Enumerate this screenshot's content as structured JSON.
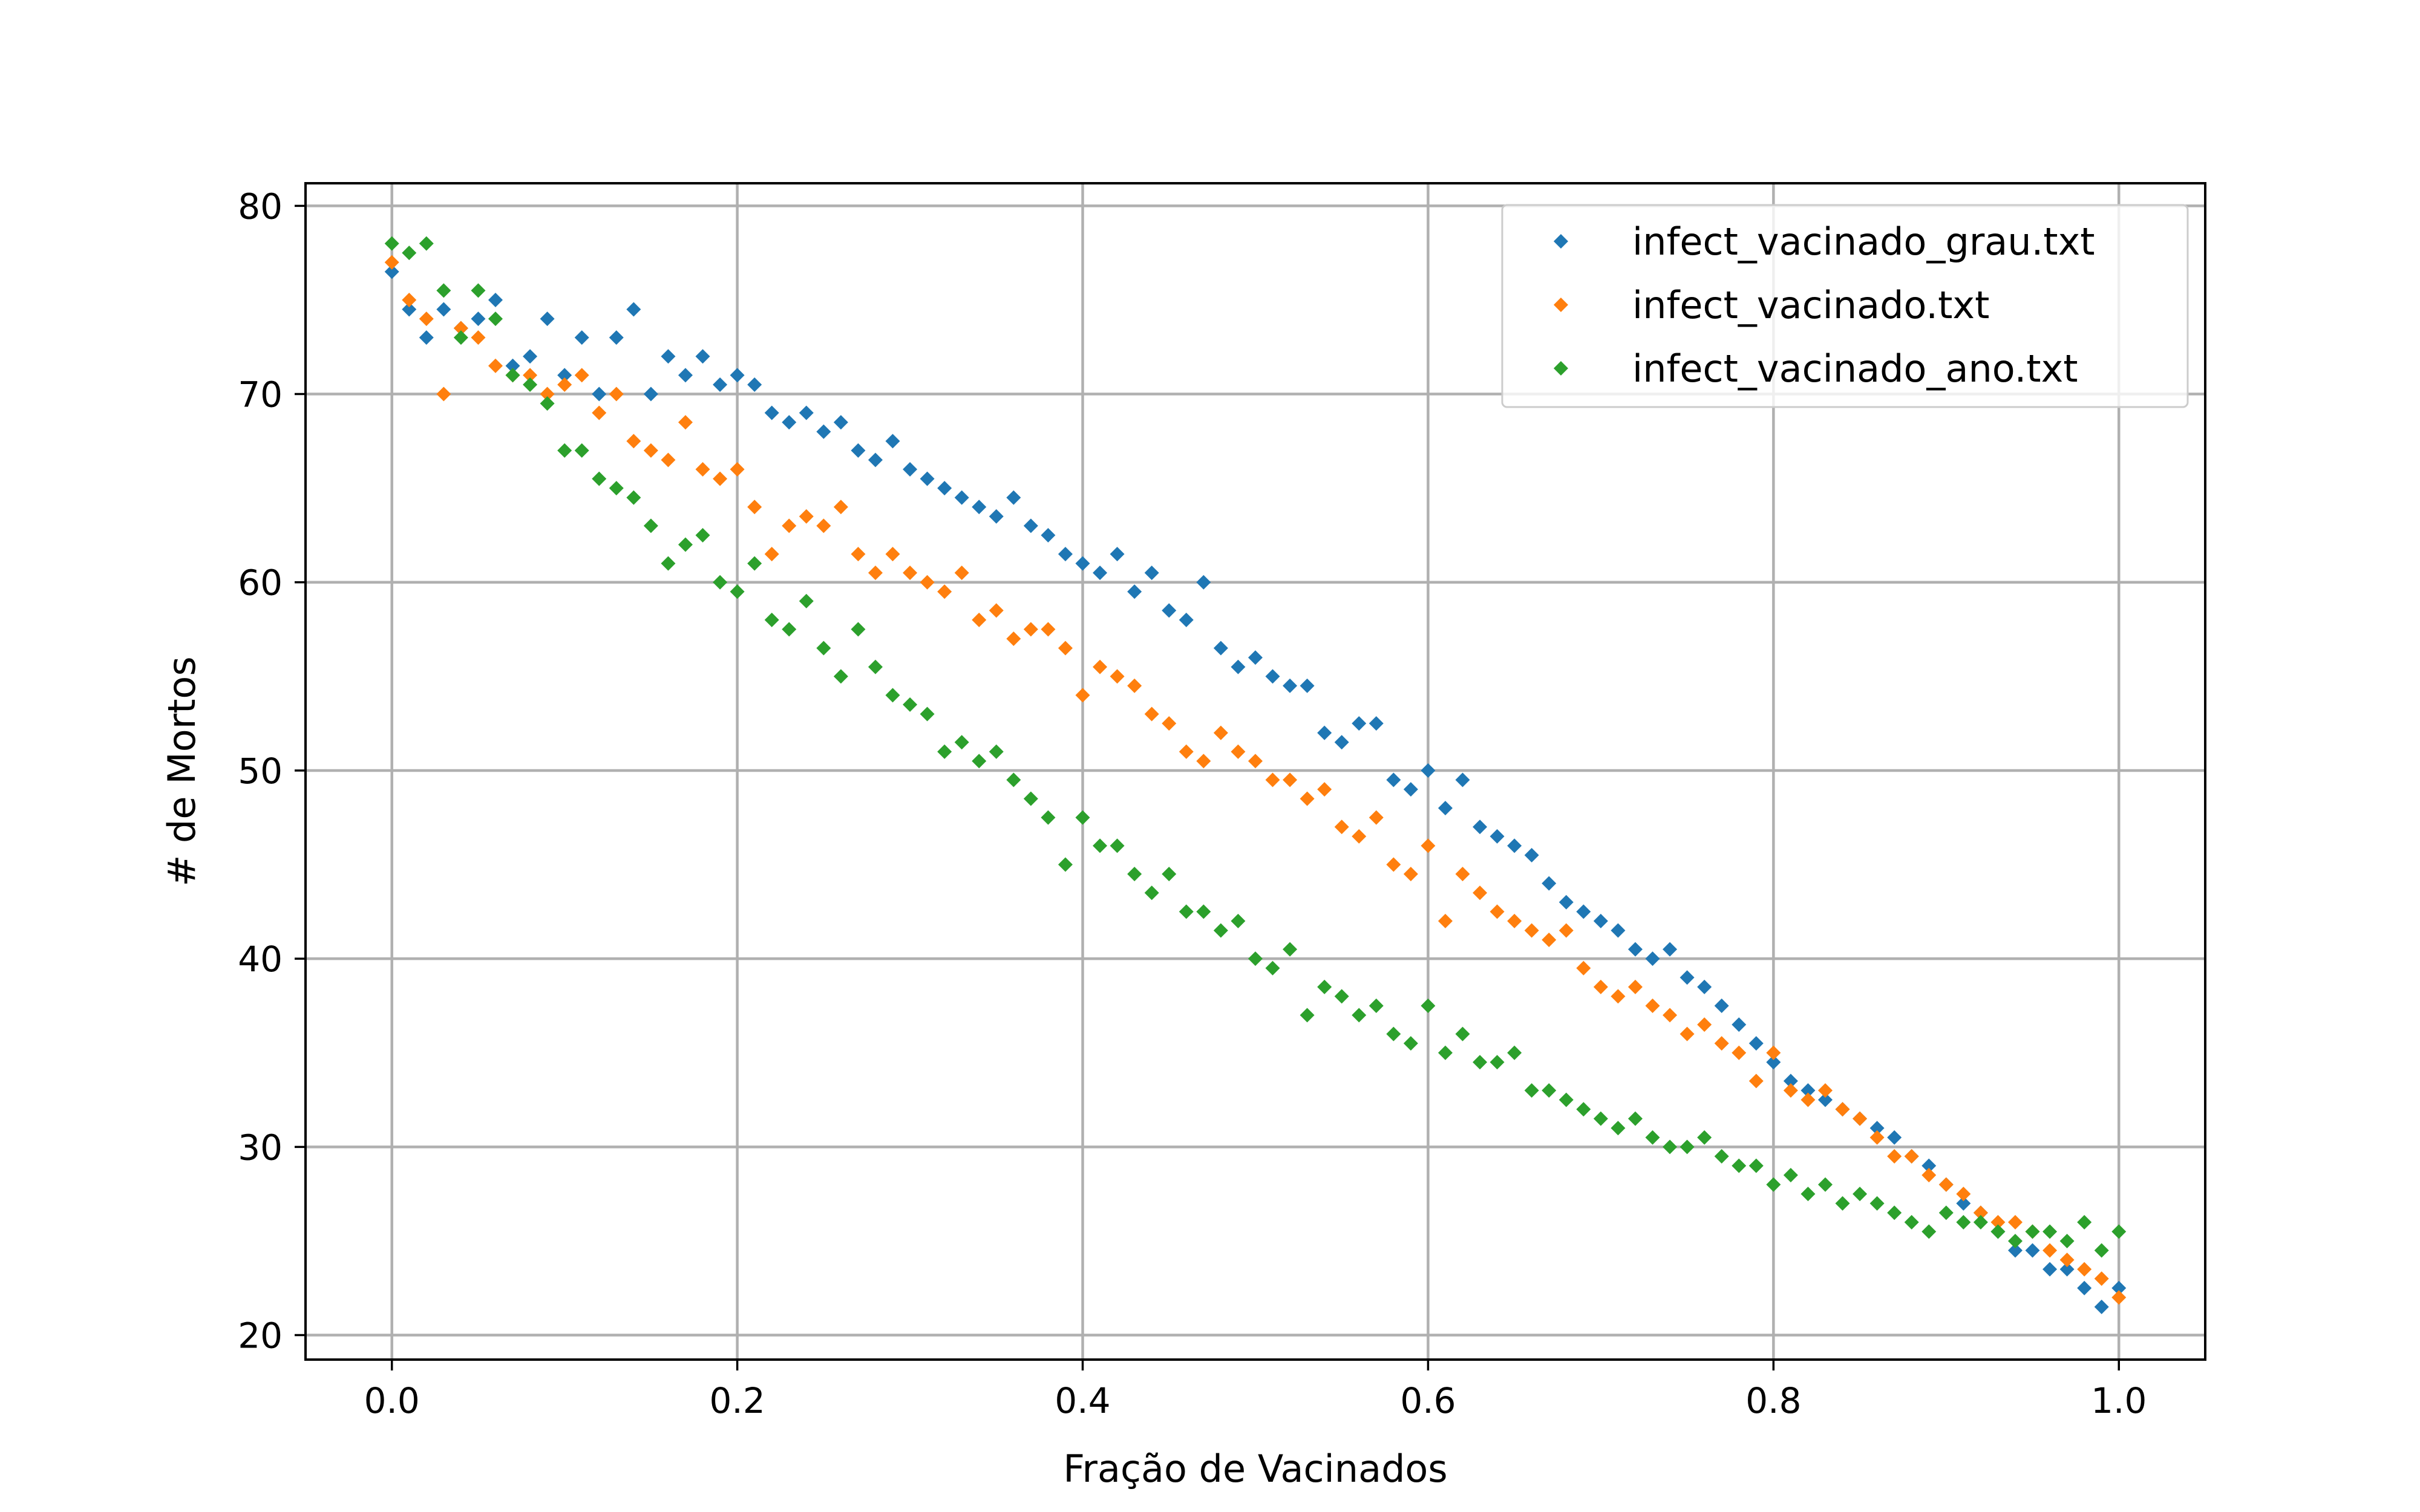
{
  "chart_data": {
    "type": "scatter",
    "xlabel": "Fração de Vacinados",
    "ylabel": "# de Mortos",
    "xlim": [
      -0.05,
      1.05
    ],
    "ylim": [
      18.7,
      81.2
    ],
    "xticks": [
      0.0,
      0.2,
      0.4,
      0.6,
      0.8,
      1.0
    ],
    "xtick_labels": [
      "0.0",
      "0.2",
      "0.4",
      "0.6",
      "0.8",
      "1.0"
    ],
    "yticks": [
      20,
      30,
      40,
      50,
      60,
      70,
      80
    ],
    "ytick_labels": [
      "20",
      "30",
      "40",
      "50",
      "60",
      "70",
      "80"
    ],
    "grid": true,
    "legend_position": "top-right",
    "marker": "diamond",
    "series": [
      {
        "name": "infect_vacinado_grau.txt",
        "color": "#1f77b4",
        "points": [
          [
            0.0,
            76.5
          ],
          [
            0.01,
            74.5
          ],
          [
            0.02,
            73.0
          ],
          [
            0.03,
            74.5
          ],
          [
            0.04,
            73.5
          ],
          [
            0.05,
            74.0
          ],
          [
            0.06,
            75.0
          ],
          [
            0.07,
            71.5
          ],
          [
            0.08,
            72.0
          ],
          [
            0.09,
            74.0
          ],
          [
            0.1,
            71.0
          ],
          [
            0.11,
            73.0
          ],
          [
            0.12,
            70.0
          ],
          [
            0.13,
            73.0
          ],
          [
            0.14,
            74.5
          ],
          [
            0.15,
            70.0
          ],
          [
            0.16,
            72.0
          ],
          [
            0.17,
            71.0
          ],
          [
            0.18,
            72.0
          ],
          [
            0.19,
            70.5
          ],
          [
            0.2,
            71.0
          ],
          [
            0.21,
            70.5
          ],
          [
            0.22,
            69.0
          ],
          [
            0.23,
            68.5
          ],
          [
            0.24,
            69.0
          ],
          [
            0.25,
            68.0
          ],
          [
            0.26,
            68.5
          ],
          [
            0.27,
            67.0
          ],
          [
            0.28,
            66.5
          ],
          [
            0.29,
            67.5
          ],
          [
            0.3,
            66.0
          ],
          [
            0.31,
            65.5
          ],
          [
            0.32,
            65.0
          ],
          [
            0.33,
            64.5
          ],
          [
            0.34,
            64.0
          ],
          [
            0.35,
            63.5
          ],
          [
            0.36,
            64.5
          ],
          [
            0.37,
            63.0
          ],
          [
            0.38,
            62.5
          ],
          [
            0.39,
            61.5
          ],
          [
            0.4,
            61.0
          ],
          [
            0.41,
            60.5
          ],
          [
            0.42,
            61.5
          ],
          [
            0.43,
            59.5
          ],
          [
            0.44,
            60.5
          ],
          [
            0.45,
            58.5
          ],
          [
            0.46,
            58.0
          ],
          [
            0.47,
            60.0
          ],
          [
            0.48,
            56.5
          ],
          [
            0.49,
            55.5
          ],
          [
            0.5,
            56.0
          ],
          [
            0.51,
            55.0
          ],
          [
            0.52,
            54.5
          ],
          [
            0.53,
            54.5
          ],
          [
            0.54,
            52.0
          ],
          [
            0.55,
            51.5
          ],
          [
            0.56,
            52.5
          ],
          [
            0.57,
            52.5
          ],
          [
            0.58,
            49.5
          ],
          [
            0.59,
            49.0
          ],
          [
            0.6,
            50.0
          ],
          [
            0.61,
            48.0
          ],
          [
            0.62,
            49.5
          ],
          [
            0.63,
            47.0
          ],
          [
            0.64,
            46.5
          ],
          [
            0.65,
            46.0
          ],
          [
            0.66,
            45.5
          ],
          [
            0.67,
            44.0
          ],
          [
            0.68,
            43.0
          ],
          [
            0.69,
            42.5
          ],
          [
            0.7,
            42.0
          ],
          [
            0.71,
            41.5
          ],
          [
            0.72,
            40.5
          ],
          [
            0.73,
            40.0
          ],
          [
            0.74,
            40.5
          ],
          [
            0.75,
            39.0
          ],
          [
            0.76,
            38.5
          ],
          [
            0.77,
            37.5
          ],
          [
            0.78,
            36.5
          ],
          [
            0.79,
            35.5
          ],
          [
            0.8,
            34.5
          ],
          [
            0.81,
            33.5
          ],
          [
            0.82,
            33.0
          ],
          [
            0.83,
            32.5
          ],
          [
            0.84,
            32.0
          ],
          [
            0.85,
            31.5
          ],
          [
            0.86,
            31.0
          ],
          [
            0.87,
            30.5
          ],
          [
            0.88,
            29.5
          ],
          [
            0.89,
            29.0
          ],
          [
            0.9,
            28.0
          ],
          [
            0.91,
            27.0
          ],
          [
            0.92,
            26.5
          ],
          [
            0.93,
            25.5
          ],
          [
            0.94,
            24.5
          ],
          [
            0.95,
            24.5
          ],
          [
            0.96,
            23.5
          ],
          [
            0.97,
            23.5
          ],
          [
            0.98,
            22.5
          ],
          [
            0.99,
            21.5
          ],
          [
            1.0,
            22.5
          ]
        ]
      },
      {
        "name": "infect_vacinado.txt",
        "color": "#ff7f0e",
        "points": [
          [
            0.0,
            77.0
          ],
          [
            0.01,
            75.0
          ],
          [
            0.02,
            74.0
          ],
          [
            0.03,
            70.0
          ],
          [
            0.04,
            73.5
          ],
          [
            0.05,
            73.0
          ],
          [
            0.06,
            71.5
          ],
          [
            0.07,
            71.0
          ],
          [
            0.08,
            71.0
          ],
          [
            0.09,
            70.0
          ],
          [
            0.1,
            70.5
          ],
          [
            0.11,
            71.0
          ],
          [
            0.12,
            69.0
          ],
          [
            0.13,
            70.0
          ],
          [
            0.14,
            67.5
          ],
          [
            0.15,
            67.0
          ],
          [
            0.16,
            66.5
          ],
          [
            0.17,
            68.5
          ],
          [
            0.18,
            66.0
          ],
          [
            0.19,
            65.5
          ],
          [
            0.2,
            66.0
          ],
          [
            0.21,
            64.0
          ],
          [
            0.22,
            61.5
          ],
          [
            0.23,
            63.0
          ],
          [
            0.24,
            63.5
          ],
          [
            0.25,
            63.0
          ],
          [
            0.26,
            64.0
          ],
          [
            0.27,
            61.5
          ],
          [
            0.28,
            60.5
          ],
          [
            0.29,
            61.5
          ],
          [
            0.3,
            60.5
          ],
          [
            0.31,
            60.0
          ],
          [
            0.32,
            59.5
          ],
          [
            0.33,
            60.5
          ],
          [
            0.34,
            58.0
          ],
          [
            0.35,
            58.5
          ],
          [
            0.36,
            57.0
          ],
          [
            0.37,
            57.5
          ],
          [
            0.38,
            57.5
          ],
          [
            0.39,
            56.5
          ],
          [
            0.4,
            54.0
          ],
          [
            0.41,
            55.5
          ],
          [
            0.42,
            55.0
          ],
          [
            0.43,
            54.5
          ],
          [
            0.44,
            53.0
          ],
          [
            0.45,
            52.5
          ],
          [
            0.46,
            51.0
          ],
          [
            0.47,
            50.5
          ],
          [
            0.48,
            52.0
          ],
          [
            0.49,
            51.0
          ],
          [
            0.5,
            50.5
          ],
          [
            0.51,
            49.5
          ],
          [
            0.52,
            49.5
          ],
          [
            0.53,
            48.5
          ],
          [
            0.54,
            49.0
          ],
          [
            0.55,
            47.0
          ],
          [
            0.56,
            46.5
          ],
          [
            0.57,
            47.5
          ],
          [
            0.58,
            45.0
          ],
          [
            0.59,
            44.5
          ],
          [
            0.6,
            46.0
          ],
          [
            0.61,
            42.0
          ],
          [
            0.62,
            44.5
          ],
          [
            0.63,
            43.5
          ],
          [
            0.64,
            42.5
          ],
          [
            0.65,
            42.0
          ],
          [
            0.66,
            41.5
          ],
          [
            0.67,
            41.0
          ],
          [
            0.68,
            41.5
          ],
          [
            0.69,
            39.5
          ],
          [
            0.7,
            38.5
          ],
          [
            0.71,
            38.0
          ],
          [
            0.72,
            38.5
          ],
          [
            0.73,
            37.5
          ],
          [
            0.74,
            37.0
          ],
          [
            0.75,
            36.0
          ],
          [
            0.76,
            36.5
          ],
          [
            0.77,
            35.5
          ],
          [
            0.78,
            35.0
          ],
          [
            0.79,
            33.5
          ],
          [
            0.8,
            35.0
          ],
          [
            0.81,
            33.0
          ],
          [
            0.82,
            32.5
          ],
          [
            0.83,
            33.0
          ],
          [
            0.84,
            32.0
          ],
          [
            0.85,
            31.5
          ],
          [
            0.86,
            30.5
          ],
          [
            0.87,
            29.5
          ],
          [
            0.88,
            29.5
          ],
          [
            0.89,
            28.5
          ],
          [
            0.9,
            28.0
          ],
          [
            0.91,
            27.5
          ],
          [
            0.92,
            26.5
          ],
          [
            0.93,
            26.0
          ],
          [
            0.94,
            26.0
          ],
          [
            0.95,
            25.5
          ],
          [
            0.96,
            24.5
          ],
          [
            0.97,
            24.0
          ],
          [
            0.98,
            23.5
          ],
          [
            0.99,
            23.0
          ],
          [
            1.0,
            22.0
          ]
        ]
      },
      {
        "name": "infect_vacinado_ano.txt",
        "color": "#2ca02c",
        "points": [
          [
            0.0,
            78.0
          ],
          [
            0.01,
            77.5
          ],
          [
            0.02,
            78.0
          ],
          [
            0.03,
            75.5
          ],
          [
            0.04,
            73.0
          ],
          [
            0.05,
            75.5
          ],
          [
            0.06,
            74.0
          ],
          [
            0.07,
            71.0
          ],
          [
            0.08,
            70.5
          ],
          [
            0.09,
            69.5
          ],
          [
            0.1,
            67.0
          ],
          [
            0.11,
            67.0
          ],
          [
            0.12,
            65.5
          ],
          [
            0.13,
            65.0
          ],
          [
            0.14,
            64.5
          ],
          [
            0.15,
            63.0
          ],
          [
            0.16,
            61.0
          ],
          [
            0.17,
            62.0
          ],
          [
            0.18,
            62.5
          ],
          [
            0.19,
            60.0
          ],
          [
            0.2,
            59.5
          ],
          [
            0.21,
            61.0
          ],
          [
            0.22,
            58.0
          ],
          [
            0.23,
            57.5
          ],
          [
            0.24,
            59.0
          ],
          [
            0.25,
            56.5
          ],
          [
            0.26,
            55.0
          ],
          [
            0.27,
            57.5
          ],
          [
            0.28,
            55.5
          ],
          [
            0.29,
            54.0
          ],
          [
            0.3,
            53.5
          ],
          [
            0.31,
            53.0
          ],
          [
            0.32,
            51.0
          ],
          [
            0.33,
            51.5
          ],
          [
            0.34,
            50.5
          ],
          [
            0.35,
            51.0
          ],
          [
            0.36,
            49.5
          ],
          [
            0.37,
            48.5
          ],
          [
            0.38,
            47.5
          ],
          [
            0.39,
            45.0
          ],
          [
            0.4,
            47.5
          ],
          [
            0.41,
            46.0
          ],
          [
            0.42,
            46.0
          ],
          [
            0.43,
            44.5
          ],
          [
            0.44,
            43.5
          ],
          [
            0.45,
            44.5
          ],
          [
            0.46,
            42.5
          ],
          [
            0.47,
            42.5
          ],
          [
            0.48,
            41.5
          ],
          [
            0.49,
            42.0
          ],
          [
            0.5,
            40.0
          ],
          [
            0.51,
            39.5
          ],
          [
            0.52,
            40.5
          ],
          [
            0.53,
            37.0
          ],
          [
            0.54,
            38.5
          ],
          [
            0.55,
            38.0
          ],
          [
            0.56,
            37.0
          ],
          [
            0.57,
            37.5
          ],
          [
            0.58,
            36.0
          ],
          [
            0.59,
            35.5
          ],
          [
            0.6,
            37.5
          ],
          [
            0.61,
            35.0
          ],
          [
            0.62,
            36.0
          ],
          [
            0.63,
            34.5
          ],
          [
            0.64,
            34.5
          ],
          [
            0.65,
            35.0
          ],
          [
            0.66,
            33.0
          ],
          [
            0.67,
            33.0
          ],
          [
            0.68,
            32.5
          ],
          [
            0.69,
            32.0
          ],
          [
            0.7,
            31.5
          ],
          [
            0.71,
            31.0
          ],
          [
            0.72,
            31.5
          ],
          [
            0.73,
            30.5
          ],
          [
            0.74,
            30.0
          ],
          [
            0.75,
            30.0
          ],
          [
            0.76,
            30.5
          ],
          [
            0.77,
            29.5
          ],
          [
            0.78,
            29.0
          ],
          [
            0.79,
            29.0
          ],
          [
            0.8,
            28.0
          ],
          [
            0.81,
            28.5
          ],
          [
            0.82,
            27.5
          ],
          [
            0.83,
            28.0
          ],
          [
            0.84,
            27.0
          ],
          [
            0.85,
            27.5
          ],
          [
            0.86,
            27.0
          ],
          [
            0.87,
            26.5
          ],
          [
            0.88,
            26.0
          ],
          [
            0.89,
            25.5
          ],
          [
            0.9,
            26.5
          ],
          [
            0.91,
            26.0
          ],
          [
            0.92,
            26.0
          ],
          [
            0.93,
            25.5
          ],
          [
            0.94,
            25.0
          ],
          [
            0.95,
            25.5
          ],
          [
            0.96,
            25.5
          ],
          [
            0.97,
            25.0
          ],
          [
            0.98,
            26.0
          ],
          [
            0.99,
            24.5
          ],
          [
            1.0,
            25.5
          ]
        ]
      }
    ]
  }
}
